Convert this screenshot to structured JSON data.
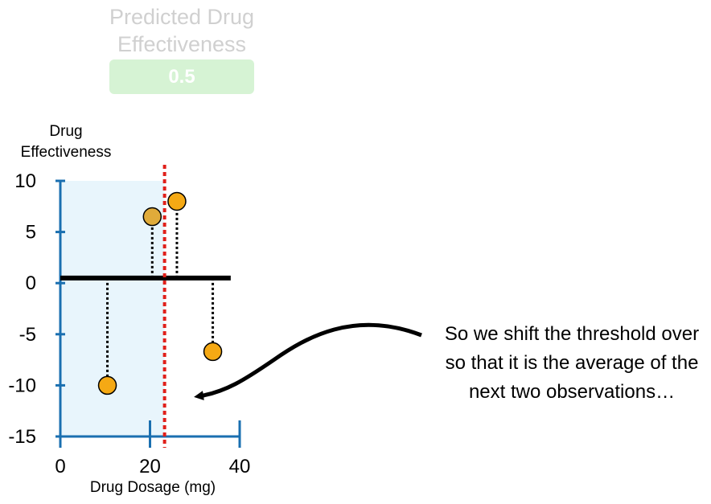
{
  "prediction_panel": {
    "title": "Predicted Drug Effectiveness",
    "value": "0.5",
    "box_color": "#d6f3d4"
  },
  "annotation": {
    "text": "So we shift the threshold over so that it is the average of the next two observations…"
  },
  "colors": {
    "axis": "#1a6fb0",
    "point_fill": "#f5a914",
    "point_highlight_fill": "#e0ab3a",
    "threshold": "#e0201a",
    "region_fill": "#e8f5fc",
    "prediction_line": "#000000"
  },
  "chart_data": {
    "type": "scatter",
    "xlabel": "Drug Dosage (mg)",
    "ylabel": "Drug Effectiveness",
    "xlim": [
      0,
      40
    ],
    "ylim": [
      -15,
      10
    ],
    "x_ticks": [
      0,
      20,
      40
    ],
    "y_ticks": [
      10,
      5,
      0,
      -5,
      -10,
      -15
    ],
    "grid": false,
    "points": [
      {
        "x": 10.5,
        "y": -10,
        "highlight": false
      },
      {
        "x": 20.5,
        "y": 6.5,
        "highlight": true
      },
      {
        "x": 26,
        "y": 8,
        "highlight": false
      },
      {
        "x": 34,
        "y": -6.7,
        "highlight": false
      }
    ],
    "prediction_line": {
      "y": 0.5,
      "x_range": [
        0,
        38
      ]
    },
    "threshold_x": 23.25,
    "shaded_region_x": [
      0,
      23.25
    ],
    "residual_lines": true
  }
}
